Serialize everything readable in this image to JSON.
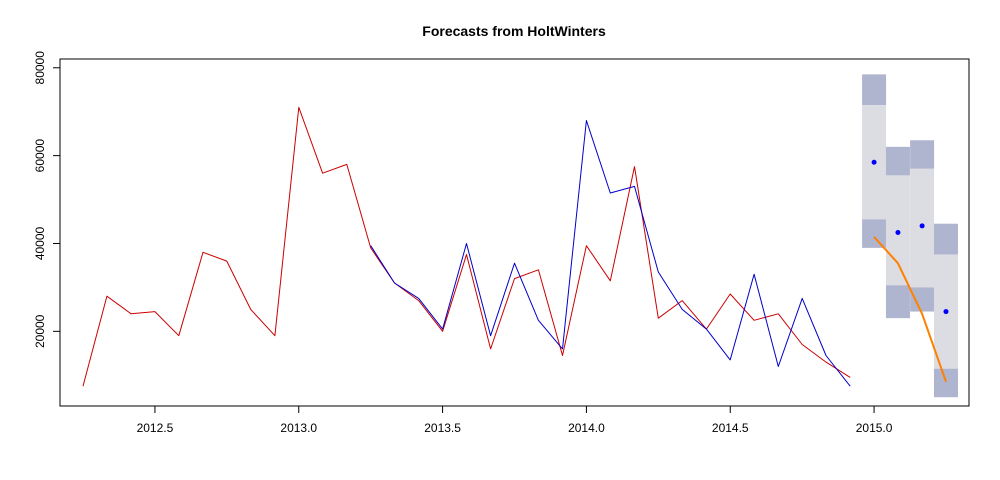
{
  "chart_data": {
    "type": "line",
    "title": "Forecasts from HoltWinters",
    "xlabel": "",
    "ylabel": "",
    "xlim": [
      2012.17,
      2015.33
    ],
    "ylim": [
      3000,
      82000
    ],
    "x_ticks": [
      2012.5,
      2013.0,
      2013.5,
      2014.0,
      2014.5,
      2015.0
    ],
    "x_tick_labels": [
      "2012.5",
      "2013.0",
      "2013.5",
      "2014.0",
      "2014.5",
      "2015.0"
    ],
    "y_ticks": [
      20000,
      40000,
      60000,
      80000
    ],
    "y_tick_labels": [
      "20000",
      "40000",
      "60000",
      "80000"
    ],
    "colors": {
      "observed": "#cc0000",
      "fitted": "#0000cc",
      "forecast_points": "#0000ff",
      "overlay": "#ff8000",
      "band_80": "#b0b5cf",
      "band_95": "#dcdce3"
    },
    "series": [
      {
        "role": "observed",
        "x": [
          2012.25,
          2012.333,
          2012.417,
          2012.5,
          2012.583,
          2012.667,
          2012.75,
          2012.833,
          2012.917,
          2013.0,
          2013.083,
          2013.167,
          2013.25,
          2013.333,
          2013.417,
          2013.5,
          2013.583,
          2013.667,
          2013.75,
          2013.833,
          2013.917,
          2014.0,
          2014.083,
          2014.167,
          2014.25,
          2014.333,
          2014.417,
          2014.5,
          2014.583,
          2014.667,
          2014.75,
          2014.833,
          2014.917
        ],
        "y": [
          7500,
          28000,
          24000,
          24500,
          19000,
          38000,
          36000,
          25000,
          19000,
          71000,
          56000,
          58000,
          39000,
          31000,
          27000,
          20000,
          37500,
          16000,
          32000,
          34000,
          14500,
          39500,
          31500,
          57500,
          23000,
          27000,
          20500,
          28500,
          22500,
          24000,
          17000,
          13000,
          9500
        ]
      },
      {
        "role": "fitted",
        "x": [
          2013.25,
          2013.333,
          2013.417,
          2013.5,
          2013.583,
          2013.667,
          2013.75,
          2013.833,
          2013.917,
          2014.0,
          2014.083,
          2014.167,
          2014.25,
          2014.333,
          2014.417,
          2014.5,
          2014.583,
          2014.667,
          2014.75,
          2014.833,
          2014.917
        ],
        "y": [
          39500,
          31000,
          27500,
          20500,
          40000,
          19000,
          35500,
          22500,
          16000,
          68000,
          51500,
          53000,
          33500,
          25000,
          20500,
          13500,
          33000,
          12000,
          27500,
          14500,
          7500
        ]
      },
      {
        "role": "overlay",
        "x": [
          2015.0,
          2015.083,
          2015.167,
          2015.25
        ],
        "y": [
          41500,
          35500,
          24000,
          8500
        ]
      }
    ],
    "forecast": {
      "x": [
        2015.0,
        2015.083,
        2015.167,
        2015.25
      ],
      "point": [
        58500,
        42500,
        44000,
        24500
      ],
      "lo80": [
        45500,
        30500,
        30000,
        11500
      ],
      "hi80": [
        71500,
        55500,
        57000,
        37500
      ],
      "lo95": [
        39000,
        23000,
        24500,
        5000
      ],
      "hi95": [
        78500,
        62000,
        63500,
        44500
      ]
    },
    "grid": false,
    "legend": "none"
  }
}
